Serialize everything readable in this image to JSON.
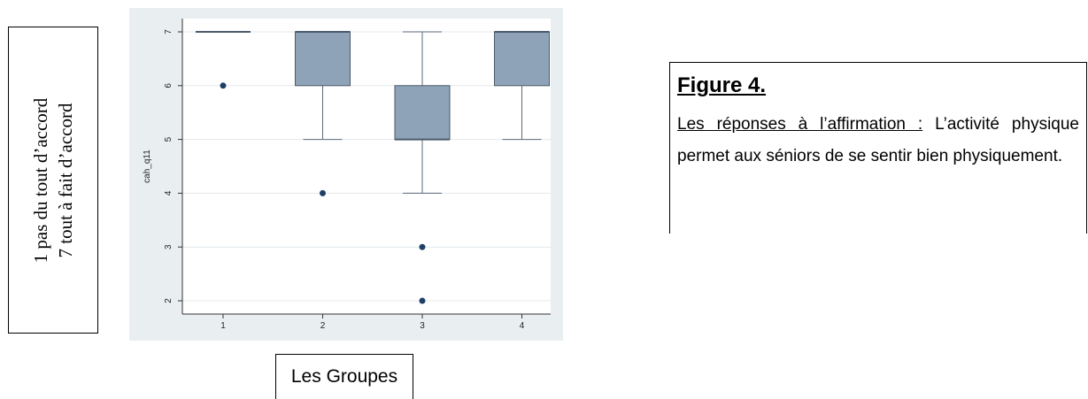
{
  "left_box": {
    "line1": "1 pas du tout d’accord",
    "line2": "7 tout à fait d’accord"
  },
  "bottom_box": {
    "label": "Les Groupes"
  },
  "caption": {
    "title": "Figure 4.",
    "lead": "Les réponses à l’affirmation :",
    "body": " L’activité physique permet aux séniors de se sentir bien physiquement."
  },
  "colors": {
    "panel_bg": "#e9eef1",
    "box_fill": "#8fa3b8",
    "box_stroke": "#4a5a6a",
    "whisker": "#5a6a7a",
    "outlier": "#1f3f66",
    "grid": "#ffffff"
  },
  "chart_data": {
    "type": "box",
    "ylabel": "cah_q11",
    "xlabel": "",
    "ylim": [
      2,
      7
    ],
    "yticks": [
      2,
      3,
      4,
      5,
      6,
      7
    ],
    "categories": [
      "1",
      "2",
      "3",
      "4"
    ],
    "boxes": [
      {
        "category": "1",
        "whisker_low": 7,
        "q1": 7,
        "median": 7,
        "q3": 7,
        "whisker_high": 7,
        "outliers": [
          6
        ]
      },
      {
        "category": "2",
        "whisker_low": 5,
        "q1": 6,
        "median": 7,
        "q3": 7,
        "whisker_high": 7,
        "outliers": [
          4
        ]
      },
      {
        "category": "3",
        "whisker_low": 4,
        "q1": 5,
        "median": 5,
        "q3": 6,
        "whisker_high": 7,
        "outliers": [
          3,
          2
        ]
      },
      {
        "category": "4",
        "whisker_low": 5,
        "q1": 6,
        "median": 7,
        "q3": 7,
        "whisker_high": 7,
        "outliers": []
      }
    ],
    "grid": true,
    "legend": "none"
  }
}
